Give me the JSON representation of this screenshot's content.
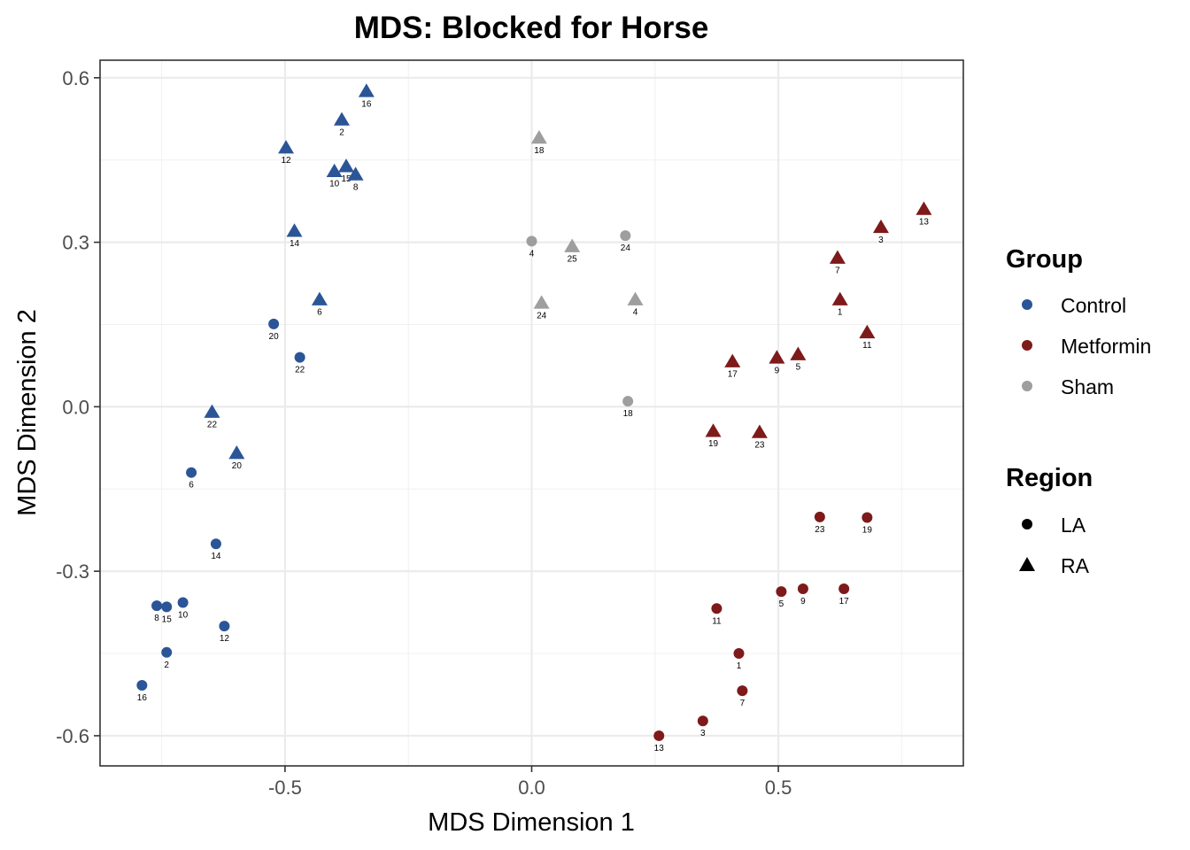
{
  "chart_data": {
    "type": "scatter",
    "title": "MDS: Blocked for Horse",
    "xlabel": "MDS Dimension 1",
    "ylabel": "MDS Dimension 2",
    "xlim": [
      -0.875,
      0.875
    ],
    "ylim": [
      -0.655,
      0.632
    ],
    "x_ticks": [
      -0.5,
      0.0,
      0.5
    ],
    "x_tick_labels": [
      "-0.5",
      "0.0",
      "0.5"
    ],
    "y_ticks": [
      -0.6,
      -0.3,
      0.0,
      0.3,
      0.6
    ],
    "y_tick_labels": [
      "-0.6",
      "-0.3",
      "0.0",
      "0.3",
      "0.6"
    ],
    "grid": true,
    "colors": {
      "Control": "#2b5597",
      "Metformin": "#7e1a1a",
      "Sham": "#9e9e9e",
      "legend_shape": "#000000"
    },
    "legend": {
      "group_title": "Group",
      "groups": [
        "Control",
        "Metformin",
        "Sham"
      ],
      "region_title": "Region",
      "regions": [
        "LA",
        "RA"
      ],
      "placement": "right"
    },
    "points": [
      {
        "group": "Control",
        "region": "RA",
        "x": -0.335,
        "y": 0.575,
        "label": "16"
      },
      {
        "group": "Control",
        "region": "RA",
        "x": -0.385,
        "y": 0.523,
        "label": "2"
      },
      {
        "group": "Control",
        "region": "RA",
        "x": -0.498,
        "y": 0.472,
        "label": "12"
      },
      {
        "group": "Control",
        "region": "RA",
        "x": -0.4,
        "y": 0.429,
        "label": "10"
      },
      {
        "group": "Control",
        "region": "RA",
        "x": -0.376,
        "y": 0.438,
        "label": "15"
      },
      {
        "group": "Control",
        "region": "RA",
        "x": -0.357,
        "y": 0.423,
        "label": "8"
      },
      {
        "group": "Control",
        "region": "RA",
        "x": -0.481,
        "y": 0.32,
        "label": "14"
      },
      {
        "group": "Control",
        "region": "RA",
        "x": -0.43,
        "y": 0.195,
        "label": "6"
      },
      {
        "group": "Control",
        "region": "RA",
        "x": -0.648,
        "y": -0.01,
        "label": "22"
      },
      {
        "group": "Control",
        "region": "RA",
        "x": -0.598,
        "y": -0.085,
        "label": "20"
      },
      {
        "group": "Control",
        "region": "LA",
        "x": -0.523,
        "y": 0.151,
        "label": "20"
      },
      {
        "group": "Control",
        "region": "LA",
        "x": -0.47,
        "y": 0.09,
        "label": "22"
      },
      {
        "group": "Control",
        "region": "LA",
        "x": -0.69,
        "y": -0.12,
        "label": "6"
      },
      {
        "group": "Control",
        "region": "LA",
        "x": -0.64,
        "y": -0.25,
        "label": "14"
      },
      {
        "group": "Control",
        "region": "LA",
        "x": -0.76,
        "y": -0.363,
        "label": "8"
      },
      {
        "group": "Control",
        "region": "LA",
        "x": -0.74,
        "y": -0.365,
        "label": "15"
      },
      {
        "group": "Control",
        "region": "LA",
        "x": -0.707,
        "y": -0.357,
        "label": "10"
      },
      {
        "group": "Control",
        "region": "LA",
        "x": -0.623,
        "y": -0.4,
        "label": "12"
      },
      {
        "group": "Control",
        "region": "LA",
        "x": -0.74,
        "y": -0.448,
        "label": "2"
      },
      {
        "group": "Control",
        "region": "LA",
        "x": -0.79,
        "y": -0.508,
        "label": "16"
      },
      {
        "group": "Sham",
        "region": "RA",
        "x": 0.015,
        "y": 0.49,
        "label": "18"
      },
      {
        "group": "Sham",
        "region": "RA",
        "x": 0.082,
        "y": 0.292,
        "label": "25"
      },
      {
        "group": "Sham",
        "region": "RA",
        "x": 0.02,
        "y": 0.189,
        "label": "24"
      },
      {
        "group": "Sham",
        "region": "RA",
        "x": 0.21,
        "y": 0.195,
        "label": "4"
      },
      {
        "group": "Sham",
        "region": "LA",
        "x": 0.0,
        "y": 0.302,
        "label": "4"
      },
      {
        "group": "Sham",
        "region": "LA",
        "x": 0.19,
        "y": 0.312,
        "label": "24"
      },
      {
        "group": "Sham",
        "region": "LA",
        "x": 0.195,
        "y": 0.01,
        "label": "18"
      },
      {
        "group": "Metformin",
        "region": "RA",
        "x": 0.795,
        "y": 0.36,
        "label": "13"
      },
      {
        "group": "Metformin",
        "region": "RA",
        "x": 0.708,
        "y": 0.327,
        "label": "3"
      },
      {
        "group": "Metformin",
        "region": "RA",
        "x": 0.62,
        "y": 0.271,
        "label": "7"
      },
      {
        "group": "Metformin",
        "region": "RA",
        "x": 0.625,
        "y": 0.195,
        "label": "1"
      },
      {
        "group": "Metformin",
        "region": "RA",
        "x": 0.68,
        "y": 0.135,
        "label": "11"
      },
      {
        "group": "Metformin",
        "region": "RA",
        "x": 0.54,
        "y": 0.095,
        "label": "5"
      },
      {
        "group": "Metformin",
        "region": "RA",
        "x": 0.497,
        "y": 0.089,
        "label": "9"
      },
      {
        "group": "Metformin",
        "region": "RA",
        "x": 0.407,
        "y": 0.082,
        "label": "17"
      },
      {
        "group": "Metformin",
        "region": "RA",
        "x": 0.368,
        "y": -0.045,
        "label": "19"
      },
      {
        "group": "Metformin",
        "region": "RA",
        "x": 0.462,
        "y": -0.047,
        "label": "23"
      },
      {
        "group": "Metformin",
        "region": "LA",
        "x": 0.584,
        "y": -0.201,
        "label": "23"
      },
      {
        "group": "Metformin",
        "region": "LA",
        "x": 0.68,
        "y": -0.202,
        "label": "19"
      },
      {
        "group": "Metformin",
        "region": "LA",
        "x": 0.506,
        "y": -0.337,
        "label": "5"
      },
      {
        "group": "Metformin",
        "region": "LA",
        "x": 0.55,
        "y": -0.332,
        "label": "9"
      },
      {
        "group": "Metformin",
        "region": "LA",
        "x": 0.633,
        "y": -0.332,
        "label": "17"
      },
      {
        "group": "Metformin",
        "region": "LA",
        "x": 0.375,
        "y": -0.368,
        "label": "11"
      },
      {
        "group": "Metformin",
        "region": "LA",
        "x": 0.42,
        "y": -0.45,
        "label": "1"
      },
      {
        "group": "Metformin",
        "region": "LA",
        "x": 0.427,
        "y": -0.518,
        "label": "7"
      },
      {
        "group": "Metformin",
        "region": "LA",
        "x": 0.347,
        "y": -0.573,
        "label": "3"
      },
      {
        "group": "Metformin",
        "region": "LA",
        "x": 0.258,
        "y": -0.6,
        "label": "13"
      }
    ]
  }
}
